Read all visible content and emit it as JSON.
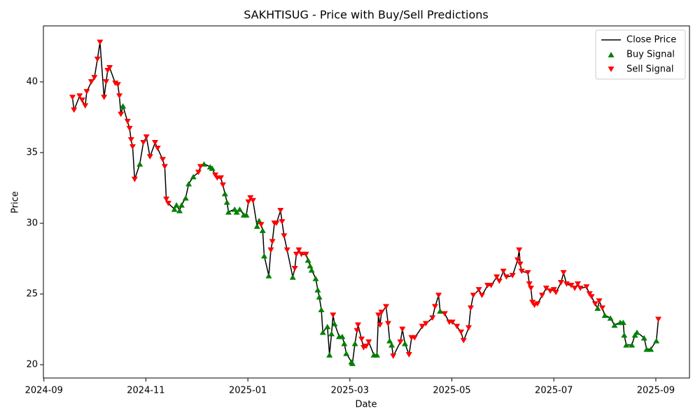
{
  "chart_data": {
    "type": "line",
    "title": "SAKHTISUG - Price with Buy/Sell Predictions",
    "xlabel": "Date",
    "ylabel": "Price",
    "xlim": [
      -0.01,
      12.66
    ],
    "ylim": [
      19.06,
      43.96
    ],
    "xticks": [
      {
        "value": 0,
        "label": "2024-09"
      },
      {
        "value": 2,
        "label": "2024-11"
      },
      {
        "value": 4,
        "label": "2025-01"
      },
      {
        "value": 6,
        "label": "2025-03"
      },
      {
        "value": 8,
        "label": "2025-05"
      },
      {
        "value": 10,
        "label": "2025-07"
      },
      {
        "value": 12,
        "label": "2025-09"
      }
    ],
    "yticks": [
      20,
      25,
      30,
      35,
      40
    ],
    "grid": false,
    "legend": "upper right",
    "x": [
      0.56,
      0.59,
      0.7,
      0.75,
      0.81,
      0.84,
      0.93,
      0.99,
      1.05,
      1.1,
      1.18,
      1.22,
      1.25,
      1.29,
      1.4,
      1.45,
      1.48,
      1.51,
      1.55,
      1.64,
      1.68,
      1.71,
      1.74,
      1.78,
      1.88,
      1.95,
      2.01,
      2.08,
      2.18,
      2.23,
      2.33,
      2.37,
      2.4,
      2.44,
      2.56,
      2.6,
      2.66,
      2.7,
      2.78,
      2.84,
      2.93,
      3.03,
      3.07,
      3.14,
      3.26,
      3.3,
      3.36,
      3.4,
      3.47,
      3.51,
      3.55,
      3.59,
      3.62,
      3.74,
      3.78,
      3.84,
      3.92,
      3.97,
      4.01,
      4.05,
      4.1,
      4.18,
      4.22,
      4.26,
      4.29,
      4.32,
      4.41,
      4.45,
      4.48,
      4.52,
      4.56,
      4.64,
      4.67,
      4.71,
      4.77,
      4.88,
      4.92,
      4.95,
      5.0,
      5.05,
      5.14,
      5.18,
      5.22,
      5.25,
      5.33,
      5.37,
      5.4,
      5.44,
      5.47,
      5.56,
      5.6,
      5.64,
      5.67,
      5.7,
      5.79,
      5.85,
      5.89,
      5.93,
      6.03,
      6.05,
      6.1,
      6.14,
      6.16,
      6.23,
      6.27,
      6.32,
      6.37,
      6.47,
      6.53,
      6.56,
      6.59,
      6.62,
      6.71,
      6.75,
      6.78,
      6.82,
      6.85,
      6.99,
      7.03,
      7.08,
      7.16,
      7.21,
      7.27,
      7.42,
      7.49,
      7.62,
      7.67,
      7.74,
      7.77,
      7.86,
      7.95,
      8.01,
      8.1,
      8.18,
      8.23,
      8.33,
      8.37,
      8.42,
      8.53,
      8.59,
      8.7,
      8.77,
      8.88,
      8.93,
      9.01,
      9.07,
      9.19,
      9.29,
      9.32,
      9.34,
      9.37,
      9.49,
      9.52,
      9.55,
      9.58,
      9.62,
      9.68,
      9.77,
      9.85,
      9.93,
      10.0,
      10.04,
      10.14,
      10.19,
      10.25,
      10.34,
      10.41,
      10.47,
      10.52,
      10.64,
      10.7,
      10.74,
      10.81,
      10.86,
      10.89,
      10.95,
      11.0,
      11.11,
      11.19,
      11.3,
      11.36,
      11.38,
      11.42,
      11.53,
      11.59,
      11.63,
      11.77,
      11.82,
      11.9,
      12.01,
      12.05
    ],
    "series": [
      {
        "name": "Close Price",
        "type": "line",
        "color": "#000000",
        "values": [
          38.9,
          38.0,
          39.0,
          38.7,
          38.3,
          39.3,
          40.0,
          40.3,
          41.6,
          42.8,
          38.9,
          40.0,
          40.8,
          41.0,
          39.9,
          39.8,
          39.0,
          37.7,
          38.3,
          37.2,
          36.7,
          35.9,
          35.4,
          33.1,
          34.2,
          35.7,
          36.1,
          34.7,
          35.7,
          35.3,
          34.5,
          34.0,
          31.7,
          31.4,
          31.0,
          31.3,
          30.9,
          31.3,
          31.8,
          32.8,
          33.3,
          33.6,
          34.0,
          34.2,
          34.0,
          33.9,
          33.4,
          33.2,
          33.2,
          32.7,
          32.1,
          31.5,
          30.8,
          31.0,
          30.8,
          31.0,
          30.6,
          30.6,
          31.5,
          31.8,
          31.6,
          29.8,
          30.2,
          29.9,
          29.5,
          27.7,
          26.3,
          28.1,
          28.7,
          30.0,
          30.0,
          30.9,
          30.1,
          29.1,
          28.1,
          26.2,
          26.8,
          27.8,
          28.1,
          27.8,
          27.8,
          27.4,
          27.0,
          26.7,
          26.1,
          25.3,
          24.8,
          23.9,
          22.3,
          22.7,
          20.7,
          22.2,
          23.5,
          22.9,
          22.0,
          22.0,
          21.5,
          20.8,
          20.2,
          20.1,
          21.5,
          22.4,
          22.8,
          21.8,
          21.2,
          21.3,
          21.6,
          20.7,
          20.7,
          23.5,
          22.8,
          23.7,
          24.1,
          22.9,
          21.7,
          21.4,
          20.6,
          21.6,
          22.5,
          21.5,
          20.7,
          21.9,
          21.9,
          22.7,
          22.9,
          23.3,
          24.1,
          24.9,
          23.8,
          23.6,
          23.0,
          23.0,
          22.7,
          22.3,
          21.7,
          22.6,
          24.0,
          24.9,
          25.3,
          24.9,
          25.6,
          25.6,
          26.2,
          25.9,
          26.6,
          26.2,
          26.3,
          27.4,
          28.1,
          27.1,
          26.6,
          26.5,
          25.7,
          25.4,
          24.4,
          24.2,
          24.3,
          24.9,
          25.4,
          25.2,
          25.3,
          25.1,
          25.8,
          26.5,
          25.7,
          25.6,
          25.4,
          25.7,
          25.4,
          25.5,
          25.0,
          24.8,
          24.3,
          24.0,
          24.5,
          24.0,
          23.5,
          23.3,
          22.8,
          23.0,
          23.0,
          22.1,
          21.4,
          21.4,
          22.1,
          22.3,
          21.9,
          21.1,
          21.1,
          21.7,
          23.2
        ]
      },
      {
        "name": "Buy Signal",
        "type": "scatter",
        "marker": "^",
        "color": "#008000",
        "x": [
          1.55,
          1.88,
          2.56,
          2.6,
          2.66,
          2.7,
          2.78,
          2.84,
          2.93,
          3.14,
          3.26,
          3.3,
          3.55,
          3.59,
          3.62,
          3.74,
          3.78,
          3.84,
          3.92,
          3.97,
          4.18,
          4.22,
          4.29,
          4.32,
          4.41,
          4.88,
          5.18,
          5.22,
          5.25,
          5.33,
          5.37,
          5.4,
          5.44,
          5.47,
          5.56,
          5.6,
          5.64,
          5.7,
          5.79,
          5.85,
          5.89,
          5.93,
          6.03,
          6.05,
          6.1,
          6.47,
          6.53,
          6.78,
          6.82,
          7.08,
          7.77,
          10.86,
          11.0,
          11.11,
          11.19,
          11.3,
          11.36,
          11.38,
          11.42,
          11.53,
          11.59,
          11.63,
          11.77,
          11.82,
          11.9,
          12.01
        ],
        "values": [
          38.3,
          34.2,
          31.0,
          31.3,
          30.9,
          31.3,
          31.8,
          32.8,
          33.3,
          34.2,
          34.0,
          33.9,
          32.1,
          31.5,
          30.8,
          31.0,
          30.8,
          31.0,
          30.6,
          30.6,
          29.8,
          30.2,
          29.5,
          27.7,
          26.3,
          26.2,
          27.4,
          27.0,
          26.7,
          26.1,
          25.3,
          24.8,
          23.9,
          22.3,
          22.7,
          20.7,
          22.2,
          22.9,
          22.0,
          22.0,
          21.5,
          20.8,
          20.2,
          20.1,
          21.5,
          20.7,
          20.7,
          21.7,
          21.4,
          21.5,
          23.8,
          24.0,
          23.5,
          23.3,
          22.8,
          23.0,
          23.0,
          22.1,
          21.4,
          21.4,
          22.1,
          22.3,
          21.9,
          21.1,
          21.1,
          21.7
        ]
      },
      {
        "name": "Sell Signal",
        "type": "scatter",
        "marker": "v",
        "color": "#ff0000",
        "x": [
          0.56,
          0.59,
          0.7,
          0.75,
          0.81,
          0.84,
          0.93,
          0.99,
          1.05,
          1.1,
          1.18,
          1.22,
          1.25,
          1.29,
          1.4,
          1.45,
          1.48,
          1.51,
          1.64,
          1.68,
          1.71,
          1.74,
          1.78,
          1.95,
          2.01,
          2.08,
          2.18,
          2.23,
          2.33,
          2.37,
          2.4,
          2.44,
          3.03,
          3.07,
          3.36,
          3.4,
          3.47,
          3.51,
          4.01,
          4.05,
          4.1,
          4.26,
          4.45,
          4.48,
          4.52,
          4.56,
          4.64,
          4.67,
          4.71,
          4.77,
          4.92,
          4.95,
          5.0,
          5.05,
          5.14,
          5.67,
          6.14,
          6.16,
          6.23,
          6.27,
          6.32,
          6.37,
          6.56,
          6.59,
          6.62,
          6.71,
          6.75,
          6.85,
          6.99,
          7.03,
          7.16,
          7.21,
          7.27,
          7.42,
          7.49,
          7.62,
          7.67,
          7.74,
          7.86,
          7.95,
          8.01,
          8.1,
          8.18,
          8.23,
          8.33,
          8.37,
          8.42,
          8.53,
          8.59,
          8.7,
          8.77,
          8.88,
          8.93,
          9.01,
          9.07,
          9.19,
          9.29,
          9.32,
          9.34,
          9.37,
          9.49,
          9.52,
          9.55,
          9.58,
          9.62,
          9.68,
          9.77,
          9.85,
          9.93,
          10.0,
          10.04,
          10.14,
          10.19,
          10.25,
          10.34,
          10.41,
          10.47,
          10.52,
          10.64,
          10.7,
          10.74,
          10.81,
          10.89,
          10.95,
          12.05
        ],
        "values": [
          38.9,
          38.0,
          39.0,
          38.7,
          38.3,
          39.3,
          40.0,
          40.3,
          41.6,
          42.8,
          38.9,
          40.0,
          40.8,
          41.0,
          39.9,
          39.8,
          39.0,
          37.7,
          37.2,
          36.7,
          35.9,
          35.4,
          33.1,
          35.7,
          36.1,
          34.7,
          35.7,
          35.3,
          34.5,
          34.0,
          31.7,
          31.4,
          33.6,
          34.0,
          33.4,
          33.2,
          33.2,
          32.7,
          31.5,
          31.8,
          31.6,
          29.9,
          28.1,
          28.7,
          30.0,
          30.0,
          30.9,
          30.1,
          29.1,
          28.1,
          26.8,
          27.8,
          28.1,
          27.8,
          27.8,
          23.5,
          22.4,
          22.8,
          21.8,
          21.2,
          21.3,
          21.6,
          23.5,
          22.8,
          23.7,
          24.1,
          22.9,
          20.6,
          21.6,
          22.5,
          20.7,
          21.9,
          21.9,
          22.7,
          22.9,
          23.3,
          24.1,
          24.9,
          23.6,
          23.0,
          23.0,
          22.7,
          22.3,
          21.7,
          22.6,
          24.0,
          24.9,
          25.3,
          24.9,
          25.6,
          25.6,
          26.2,
          25.9,
          26.6,
          26.2,
          26.3,
          27.4,
          28.1,
          27.1,
          26.6,
          26.5,
          25.7,
          25.4,
          24.4,
          24.2,
          24.3,
          24.9,
          25.4,
          25.2,
          25.3,
          25.1,
          25.8,
          26.5,
          25.7,
          25.6,
          25.4,
          25.7,
          25.4,
          25.5,
          25.0,
          24.8,
          24.3,
          24.5,
          24.0,
          23.2
        ]
      }
    ]
  }
}
